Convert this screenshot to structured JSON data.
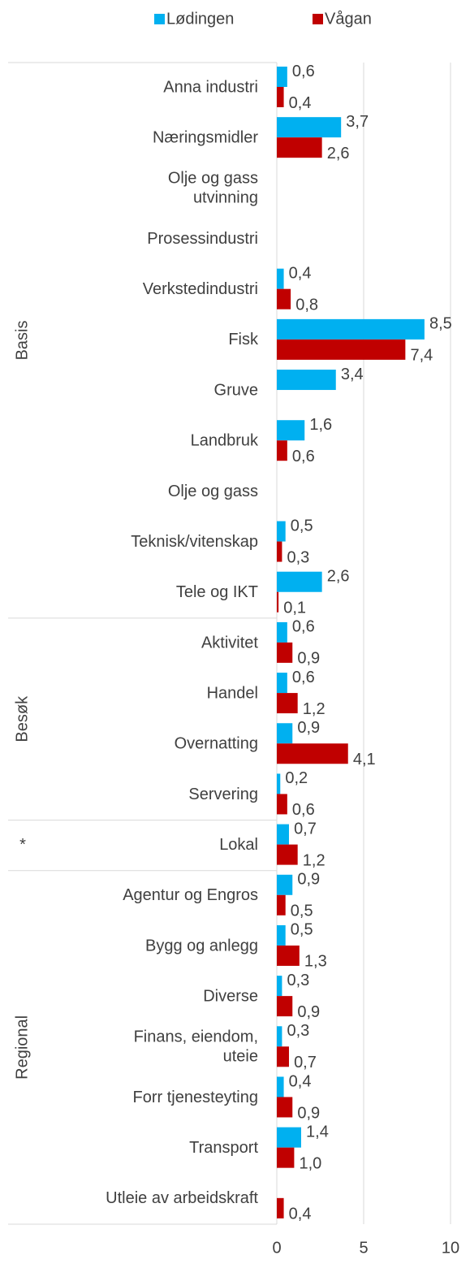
{
  "chart_data": {
    "type": "hbar",
    "categories": [
      "Anna industri",
      "Næringsmidler",
      [
        "Olje og gass",
        "utvinning"
      ],
      "Prosessindustri",
      "Verkstedindustri",
      "Fisk",
      "Gruve",
      "Landbruk",
      "Olje og gass",
      "Teknisk/vitenskap",
      "Tele og IKT",
      "Aktivitet",
      "Handel",
      "Overnatting",
      "Servering",
      "Lokal",
      "Agentur og Engros",
      "Bygg og anlegg",
      "Diverse",
      [
        "Finans, eiendom,",
        "uteie"
      ],
      "Forr tjenesteyting",
      "Transport",
      "Utleie av arbeidskraft"
    ],
    "groups": [
      {
        "name": "Basis",
        "count": 11
      },
      {
        "name": "Besøk",
        "count": 4
      },
      {
        "name": "*",
        "count": 1
      },
      {
        "name": "Regional",
        "count": 7
      }
    ],
    "series": [
      {
        "name": "Lødingen",
        "color": "#00b0f0",
        "values": [
          0.6,
          3.7,
          null,
          null,
          0.4,
          8.5,
          3.4,
          1.6,
          null,
          0.5,
          2.6,
          0.6,
          0.6,
          0.9,
          0.2,
          0.7,
          0.9,
          0.5,
          0.3,
          0.3,
          0.4,
          1.4,
          null
        ],
        "value_labels": [
          "0,6",
          "3,7",
          null,
          null,
          "0,4",
          "8,5",
          "3,4",
          "1,6",
          null,
          "0,5",
          "2,6",
          "0,6",
          "0,6",
          "0,9",
          "0,2",
          "0,7",
          "0,9",
          "0,5",
          "0,3",
          "0,3",
          "0,4",
          "1,4",
          null
        ]
      },
      {
        "name": "Vågan",
        "color": "#c00000",
        "values": [
          0.4,
          2.6,
          null,
          null,
          0.8,
          7.4,
          null,
          0.6,
          null,
          0.3,
          0.1,
          0.9,
          1.2,
          4.1,
          0.6,
          1.2,
          0.5,
          1.3,
          0.9,
          0.7,
          0.9,
          1.0,
          0.4
        ],
        "value_labels": [
          "0,4",
          "2,6",
          null,
          null,
          "0,8",
          "7,4",
          null,
          "0,6",
          null,
          "0,3",
          "0,1",
          "0,9",
          "1,2",
          "4,1",
          "0,6",
          "1,2",
          "0,5",
          "1,3",
          "0,9",
          "0,7",
          "0,9",
          "1,0",
          "0,4"
        ]
      }
    ],
    "xlim": [
      0,
      10
    ],
    "xticks": [
      0,
      5,
      10
    ],
    "grid": true,
    "legend": "top"
  }
}
